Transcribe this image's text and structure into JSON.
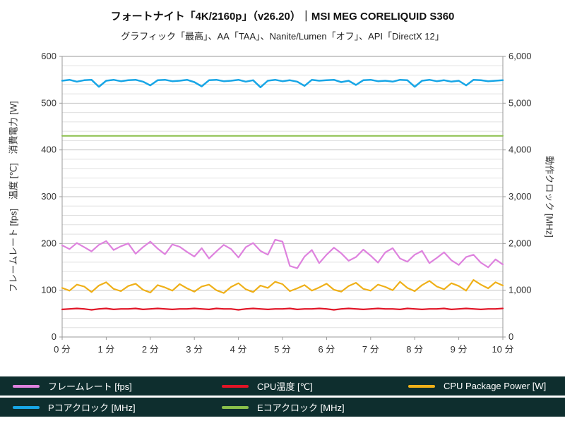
{
  "header": {
    "title": "フォートナイト「4K/2160p」（v26.20）｜MSI MEG CORELIQUID S360",
    "subtitle": "グラフィック「最高」、AA「TAA」、Nanite/Lumen「オフ」、API「DirectX 12」"
  },
  "axes": {
    "left_label": "フレームレート [fps]　温度 [℃]　消費電力 [W]",
    "right_label": "動作クロック [MHz]"
  },
  "colors": {
    "legend_bg": "#0e2e2e",
    "grid_minor": "#e0e0e0",
    "grid_major": "#c2c2c2",
    "axis_border": "#999999"
  },
  "chart_data": {
    "type": "line",
    "title": "フォートナイト「4K/2160p」（v26.20）｜MSI MEG CORELIQUID S360",
    "subtitle": "グラフィック「最高」、AA「TAA」、Nanite/Lumen「オフ」、API「DirectX 12」",
    "x_ticks": [
      "0 分",
      "1 分",
      "2 分",
      "3 分",
      "4 分",
      "5 分",
      "6 分",
      "7 分",
      "8 分",
      "9 分",
      "10 分"
    ],
    "left_axis": {
      "min": 0,
      "max": 600,
      "major_step": 100,
      "minor_step": 20,
      "tick_labels": [
        "0",
        "100",
        "200",
        "300",
        "400",
        "500",
        "600"
      ]
    },
    "right_axis": {
      "min": 0,
      "max": 6000,
      "major_step": 1000,
      "tick_labels": [
        "0",
        "1,000",
        "2,000",
        "3,000",
        "4,000",
        "5,000",
        "6,000"
      ]
    },
    "grid": "horizontal-only",
    "legend_position": "bottom",
    "series": [
      {
        "name": "Eコアクロック [MHz]",
        "color": "#8abf4a",
        "axis": "right",
        "width": 2.0,
        "constant": 4300,
        "count": 61
      },
      {
        "name": "Pコアクロック [MHz]",
        "color": "#18a6e6",
        "axis": "right",
        "width": 2.5,
        "values": [
          5480,
          5500,
          5460,
          5490,
          5500,
          5350,
          5480,
          5500,
          5470,
          5490,
          5500,
          5460,
          5380,
          5490,
          5500,
          5470,
          5480,
          5500,
          5450,
          5360,
          5490,
          5500,
          5470,
          5480,
          5500,
          5460,
          5490,
          5340,
          5480,
          5500,
          5470,
          5490,
          5460,
          5370,
          5500,
          5480,
          5490,
          5500,
          5450,
          5480,
          5390,
          5490,
          5500,
          5470,
          5480,
          5460,
          5500,
          5490,
          5350,
          5480,
          5500,
          5470,
          5490,
          5460,
          5480,
          5380,
          5500,
          5490,
          5470,
          5480,
          5490
        ]
      },
      {
        "name": "CPU Package Power [W]",
        "color": "#efb019",
        "axis": "left",
        "width": 2.2,
        "values": [
          105,
          99,
          112,
          108,
          96,
          110,
          117,
          103,
          98,
          109,
          114,
          101,
          95,
          111,
          106,
          99,
          113,
          104,
          97,
          108,
          112,
          100,
          94,
          107,
          115,
          102,
          96,
          110,
          105,
          118,
          113,
          98,
          104,
          111,
          99,
          106,
          114,
          101,
          97,
          109,
          116,
          103,
          99,
          112,
          107,
          100,
          118,
          105,
          98,
          111,
          120,
          108,
          102,
          115,
          109,
          99,
          122,
          112,
          104,
          117,
          110
        ]
      },
      {
        "name": "フレームレート [fps]",
        "color": "#de82de",
        "axis": "left",
        "width": 2.2,
        "values": [
          196,
          188,
          201,
          192,
          183,
          197,
          205,
          186,
          194,
          200,
          178,
          192,
          204,
          189,
          177,
          198,
          193,
          182,
          172,
          190,
          168,
          183,
          197,
          188,
          170,
          192,
          201,
          184,
          176,
          208,
          204,
          152,
          147,
          172,
          186,
          158,
          176,
          191,
          179,
          163,
          171,
          187,
          174,
          159,
          181,
          190,
          168,
          161,
          176,
          184,
          158,
          169,
          181,
          164,
          154,
          171,
          176,
          159,
          149,
          166,
          155
        ]
      },
      {
        "name": "CPU温度 [℃]",
        "color": "#e11426",
        "axis": "left",
        "width": 2.2,
        "values": [
          59,
          60,
          61,
          60,
          58,
          60,
          61,
          59,
          60,
          60,
          61,
          59,
          60,
          61,
          60,
          59,
          60,
          60,
          61,
          60,
          59,
          61,
          60,
          60,
          58,
          60,
          61,
          60,
          59,
          60,
          60,
          61,
          59,
          60,
          60,
          61,
          60,
          58,
          60,
          61,
          60,
          59,
          60,
          61,
          60,
          60,
          59,
          61,
          60,
          59,
          60,
          60,
          61,
          59,
          60,
          61,
          60,
          59,
          60,
          60,
          61
        ]
      }
    ],
    "legend_rows": [
      [
        {
          "label": "フレームレート [fps]",
          "color": "#de82de"
        },
        {
          "label": "CPU温度 [℃]",
          "color": "#e11426"
        },
        {
          "label": "CPU Package Power [W]",
          "color": "#efb019"
        }
      ],
      [
        {
          "label": "Pコアクロック [MHz]",
          "color": "#18a6e6"
        },
        {
          "label": "Eコアクロック [MHz]",
          "color": "#8abf4a"
        }
      ]
    ]
  }
}
